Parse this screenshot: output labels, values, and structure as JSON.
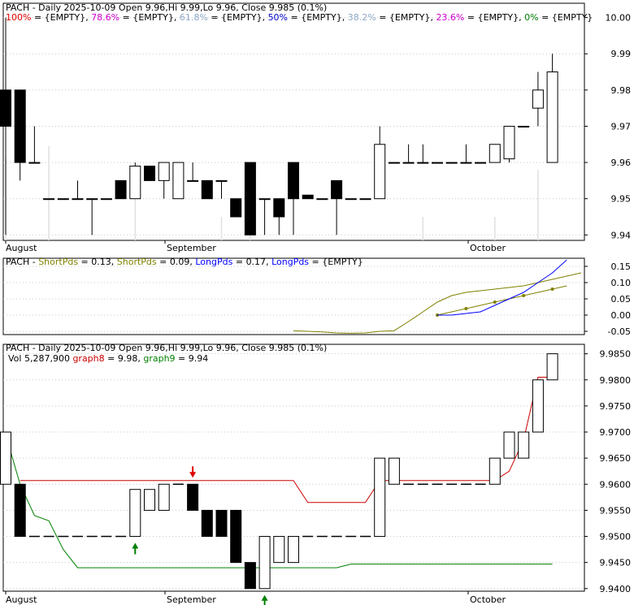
{
  "colors": {
    "background": "#ffffff",
    "up_candle": "#ffffff",
    "down_candle": "#000000",
    "grid": "#c8c8c8",
    "fib100": "#e00000",
    "fib786": "#cc00cc",
    "fib618": "#8fa8c8",
    "fib50": "#0000cc",
    "fib382": "#8fa8c8",
    "fib236": "#cc00cc",
    "fib0": "#008000",
    "short1": "#808000",
    "short2": "#808000",
    "long1": "#0000ff",
    "long2": "#0000ff",
    "graph8": "#cc0000",
    "graph9": "#008000",
    "sell_arrow": "#e00000",
    "buy_arrow": "#008000"
  },
  "x_labels": [
    "August",
    "September",
    "October"
  ],
  "panel1": {
    "title": "PACH - Daily 2025-10-09 Open 9.96,Hi 9.99,Lo 9.96, Close 9.985 (0.1%)",
    "fib_items": [
      {
        "label": "100%",
        "value": "{EMPTY}",
        "color": "#e00000"
      },
      {
        "label": "78.6%",
        "value": "{EMPTY}",
        "color": "#cc00cc"
      },
      {
        "label": "61.8%",
        "value": "{EMPTY}",
        "color": "#8fa8c8"
      },
      {
        "label": "50%",
        "value": "{EMPTY}",
        "color": "#0000cc"
      },
      {
        "label": "38.2%",
        "value": "{EMPTY}",
        "color": "#8fa8c8"
      },
      {
        "label": "23.6%",
        "value": "{EMPTY}",
        "color": "#cc00cc"
      },
      {
        "label": "0%",
        "value": "{EMPTY}",
        "color": "#008000"
      }
    ],
    "y_ticks": [
      "10.00",
      "9.99",
      "9.98",
      "9.97",
      "9.96",
      "9.95",
      "9.94"
    ]
  },
  "panel2": {
    "title": "PACH",
    "items": [
      {
        "label": "ShortPds",
        "value": "0.13",
        "color": "#808000"
      },
      {
        "label": "ShortPds",
        "value": "0.09",
        "color": "#808000"
      },
      {
        "label": "LongPds",
        "value": "0.17",
        "color": "#0000ff"
      },
      {
        "label": "LongPds",
        "value": "{EMPTY}",
        "color": "#0000ff"
      }
    ],
    "y_ticks": [
      "0.15",
      "0.10",
      "0.05",
      "0.00",
      "-0.05"
    ]
  },
  "panel3": {
    "title": "PACH - Daily 2025-10-09 Open 9.96,Hi 9.99,Lo 9.96, Close 9.985 (0.1%)",
    "vol_text": "Vol 5,287,900",
    "graph8_label": "graph8",
    "graph8_value": "9.98",
    "graph9_label": "graph9",
    "graph9_value": "9.94",
    "y_ticks": [
      "9.9850",
      "9.9800",
      "9.9750",
      "9.9700",
      "9.9650",
      "9.9600",
      "9.9550",
      "9.9500",
      "9.9450",
      "9.9400"
    ]
  },
  "chart_data": [
    {
      "type": "candlestick",
      "title": "PACH - Daily 2025-10-09 Open 9.96,Hi 9.99,Lo 9.96, Close 9.985 (0.1%)",
      "ylim": [
        9.9385,
        10.0035
      ],
      "grid": true,
      "x_labels": [
        "August",
        "September",
        "October"
      ],
      "candles": [
        {
          "o": 9.98,
          "h": 10.0,
          "l": 9.94,
          "c": 9.97
        },
        {
          "o": 9.98,
          "h": 9.98,
          "l": 9.955,
          "c": 9.96
        },
        {
          "o": 9.96,
          "h": 9.97,
          "l": 9.96,
          "c": 9.96
        },
        {
          "o": 9.95,
          "h": 9.95,
          "l": 9.95,
          "c": 9.95
        },
        {
          "o": 9.95,
          "h": 9.95,
          "l": 9.95,
          "c": 9.95
        },
        {
          "o": 9.95,
          "h": 9.955,
          "l": 9.95,
          "c": 9.95
        },
        {
          "o": 9.95,
          "h": 9.95,
          "l": 9.94,
          "c": 9.95
        },
        {
          "o": 9.95,
          "h": 9.95,
          "l": 9.95,
          "c": 9.95
        },
        {
          "o": 9.955,
          "h": 9.955,
          "l": 9.95,
          "c": 9.95
        },
        {
          "o": 9.95,
          "h": 9.96,
          "l": 9.95,
          "c": 9.959
        },
        {
          "o": 9.959,
          "h": 9.959,
          "l": 9.955,
          "c": 9.955
        },
        {
          "o": 9.955,
          "h": 9.96,
          "l": 9.95,
          "c": 9.96
        },
        {
          "o": 9.95,
          "h": 9.96,
          "l": 9.95,
          "c": 9.96
        },
        {
          "o": 9.955,
          "h": 9.96,
          "l": 9.955,
          "c": 9.955
        },
        {
          "o": 9.955,
          "h": 9.955,
          "l": 9.95,
          "c": 9.95
        },
        {
          "o": 9.955,
          "h": 9.955,
          "l": 9.95,
          "c": 9.955
        },
        {
          "o": 9.95,
          "h": 9.95,
          "l": 9.945,
          "c": 9.945
        },
        {
          "o": 9.96,
          "h": 9.96,
          "l": 9.94,
          "c": 9.94
        },
        {
          "o": 9.95,
          "h": 9.95,
          "l": 9.94,
          "c": 9.95
        },
        {
          "o": 9.95,
          "h": 9.95,
          "l": 9.94,
          "c": 9.945
        },
        {
          "o": 9.96,
          "h": 9.96,
          "l": 9.94,
          "c": 9.95
        },
        {
          "o": 9.951,
          "h": 9.951,
          "l": 9.95,
          "c": 9.95
        },
        {
          "o": 9.95,
          "h": 9.95,
          "l": 9.95,
          "c": 9.95
        },
        {
          "o": 9.955,
          "h": 9.955,
          "l": 9.94,
          "c": 9.95
        },
        {
          "o": 9.95,
          "h": 9.95,
          "l": 9.95,
          "c": 9.95
        },
        {
          "o": 9.95,
          "h": 9.95,
          "l": 9.95,
          "c": 9.95
        },
        {
          "o": 9.95,
          "h": 9.97,
          "l": 9.95,
          "c": 9.965
        },
        {
          "o": 9.96,
          "h": 9.96,
          "l": 9.96,
          "c": 9.96
        },
        {
          "o": 9.96,
          "h": 9.965,
          "l": 9.96,
          "c": 9.96
        },
        {
          "o": 9.96,
          "h": 9.965,
          "l": 9.96,
          "c": 9.96
        },
        {
          "o": 9.96,
          "h": 9.96,
          "l": 9.96,
          "c": 9.96
        },
        {
          "o": 9.96,
          "h": 9.96,
          "l": 9.96,
          "c": 9.96
        },
        {
          "o": 9.96,
          "h": 9.965,
          "l": 9.96,
          "c": 9.96
        },
        {
          "o": 9.96,
          "h": 9.96,
          "l": 9.96,
          "c": 9.96
        },
        {
          "o": 9.96,
          "h": 9.965,
          "l": 9.96,
          "c": 9.965
        },
        {
          "o": 9.961,
          "h": 9.97,
          "l": 9.96,
          "c": 9.97
        },
        {
          "o": 9.97,
          "h": 9.97,
          "l": 9.97,
          "c": 9.97
        },
        {
          "o": 9.975,
          "h": 9.985,
          "l": 9.97,
          "c": 9.98
        },
        {
          "o": 9.96,
          "h": 9.99,
          "l": 9.96,
          "c": 9.985
        }
      ],
      "volume_bars": [
        0.35,
        0.0,
        0.0,
        0.4,
        0.0,
        0.0,
        0.0,
        0.0,
        0.0,
        0.2,
        0.0,
        0.0,
        0.0,
        0.0,
        0.0,
        0.1,
        0.0,
        0.15,
        0.0,
        0.0,
        0.0,
        0.0,
        0.0,
        0.0,
        0.0,
        0.0,
        0.0,
        0.0,
        0.0,
        0.1,
        0.0,
        0.0,
        0.0,
        0.0,
        0.1,
        0.0,
        0.0,
        0.3,
        0.0
      ]
    },
    {
      "type": "line",
      "ylim": [
        -0.06,
        0.17
      ],
      "series": [
        {
          "name": "ShortPds",
          "start_index": 20,
          "values": [
            -0.048,
            -0.05,
            -0.052,
            -0.055,
            -0.056,
            -0.055,
            -0.05,
            -0.048,
            -0.02,
            0.01,
            0.04,
            0.06,
            0.07,
            0.075,
            0.08,
            0.085,
            0.09,
            0.1,
            0.11,
            0.12,
            0.13
          ]
        },
        {
          "name": "ShortPds",
          "start_index": 30,
          "values": [
            0.0,
            0.01,
            0.02,
            0.03,
            0.04,
            0.05,
            0.06,
            0.07,
            0.08,
            0.09
          ]
        },
        {
          "name": "LongPds",
          "start_index": 30,
          "values": [
            0.0,
            0.0,
            0.005,
            0.01,
            0.03,
            0.05,
            0.07,
            0.1,
            0.13,
            0.17
          ]
        }
      ]
    },
    {
      "type": "candlestick",
      "title": "PACH - Daily 2025-10-09 Open 9.96,Hi 9.99,Lo 9.96, Close 9.985 (0.1%)",
      "ylim": [
        9.9395,
        9.9865
      ],
      "grid": true,
      "x_labels": [
        "August",
        "September",
        "October"
      ],
      "candles": [
        {
          "o": 9.96,
          "c": 9.97
        },
        {
          "o": 9.96,
          "c": 9.95
        },
        {
          "o": 9.95,
          "c": 9.95
        },
        {
          "o": 9.95,
          "c": 9.95
        },
        {
          "o": 9.95,
          "c": 9.95
        },
        {
          "o": 9.95,
          "c": 9.95
        },
        {
          "o": 9.95,
          "c": 9.95
        },
        {
          "o": 9.95,
          "c": 9.95
        },
        {
          "o": 9.95,
          "c": 9.95
        },
        {
          "o": 9.95,
          "c": 9.959
        },
        {
          "o": 9.955,
          "c": 9.959
        },
        {
          "o": 9.955,
          "c": 9.96
        },
        {
          "o": 9.96,
          "c": 9.96
        },
        {
          "o": 9.96,
          "c": 9.955
        },
        {
          "o": 9.955,
          "c": 9.95
        },
        {
          "o": 9.955,
          "c": 9.95
        },
        {
          "o": 9.955,
          "c": 9.945
        },
        {
          "o": 9.945,
          "c": 9.94
        },
        {
          "o": 9.94,
          "c": 9.95
        },
        {
          "o": 9.945,
          "c": 9.95
        },
        {
          "o": 9.945,
          "c": 9.95
        },
        {
          "o": 9.95,
          "c": 9.95
        },
        {
          "o": 9.95,
          "c": 9.95
        },
        {
          "o": 9.95,
          "c": 9.95
        },
        {
          "o": 9.95,
          "c": 9.95
        },
        {
          "o": 9.95,
          "c": 9.95
        },
        {
          "o": 9.95,
          "c": 9.965
        },
        {
          "o": 9.96,
          "c": 9.965
        },
        {
          "o": 9.96,
          "c": 9.96
        },
        {
          "o": 9.96,
          "c": 9.96
        },
        {
          "o": 9.96,
          "c": 9.96
        },
        {
          "o": 9.96,
          "c": 9.96
        },
        {
          "o": 9.96,
          "c": 9.96
        },
        {
          "o": 9.96,
          "c": 9.96
        },
        {
          "o": 9.96,
          "c": 9.965
        },
        {
          "o": 9.965,
          "c": 9.97
        },
        {
          "o": 9.965,
          "c": 9.97
        },
        {
          "o": 9.97,
          "c": 9.98
        },
        {
          "o": 9.98,
          "c": 9.985
        }
      ],
      "series": [
        {
          "name": "graph8",
          "values": [
            null,
            9.9607,
            9.9607,
            9.9607,
            9.9607,
            9.9607,
            9.9607,
            9.9607,
            9.9607,
            9.9607,
            9.9607,
            9.9607,
            9.9607,
            9.9607,
            9.9607,
            9.9607,
            9.9607,
            9.9607,
            9.9607,
            9.9607,
            9.9607,
            9.9565,
            9.9565,
            9.9565,
            9.9565,
            9.9565,
            9.9607,
            9.9607,
            9.9607,
            9.9607,
            9.9607,
            9.9607,
            9.9607,
            9.9607,
            9.9607,
            9.9625,
            9.9685,
            9.9805,
            9.9805
          ]
        },
        {
          "name": "graph9",
          "values": [
            9.9695,
            9.96,
            9.954,
            9.953,
            9.9475,
            9.944,
            9.944,
            9.944,
            9.944,
            9.944,
            9.944,
            9.944,
            9.944,
            9.944,
            9.944,
            9.944,
            9.944,
            9.944,
            9.944,
            9.944,
            9.944,
            9.944,
            9.944,
            9.944,
            9.9447,
            9.9447,
            9.9447,
            9.9447,
            9.9447,
            9.9447,
            9.9447,
            9.9447,
            9.9447,
            9.9447,
            9.9447,
            9.9447,
            9.9447,
            9.9447,
            9.9447
          ]
        }
      ],
      "signals": [
        {
          "type": "buy",
          "index": 9
        },
        {
          "type": "sell",
          "index": 13
        },
        {
          "type": "buy",
          "index": 18
        }
      ]
    }
  ]
}
